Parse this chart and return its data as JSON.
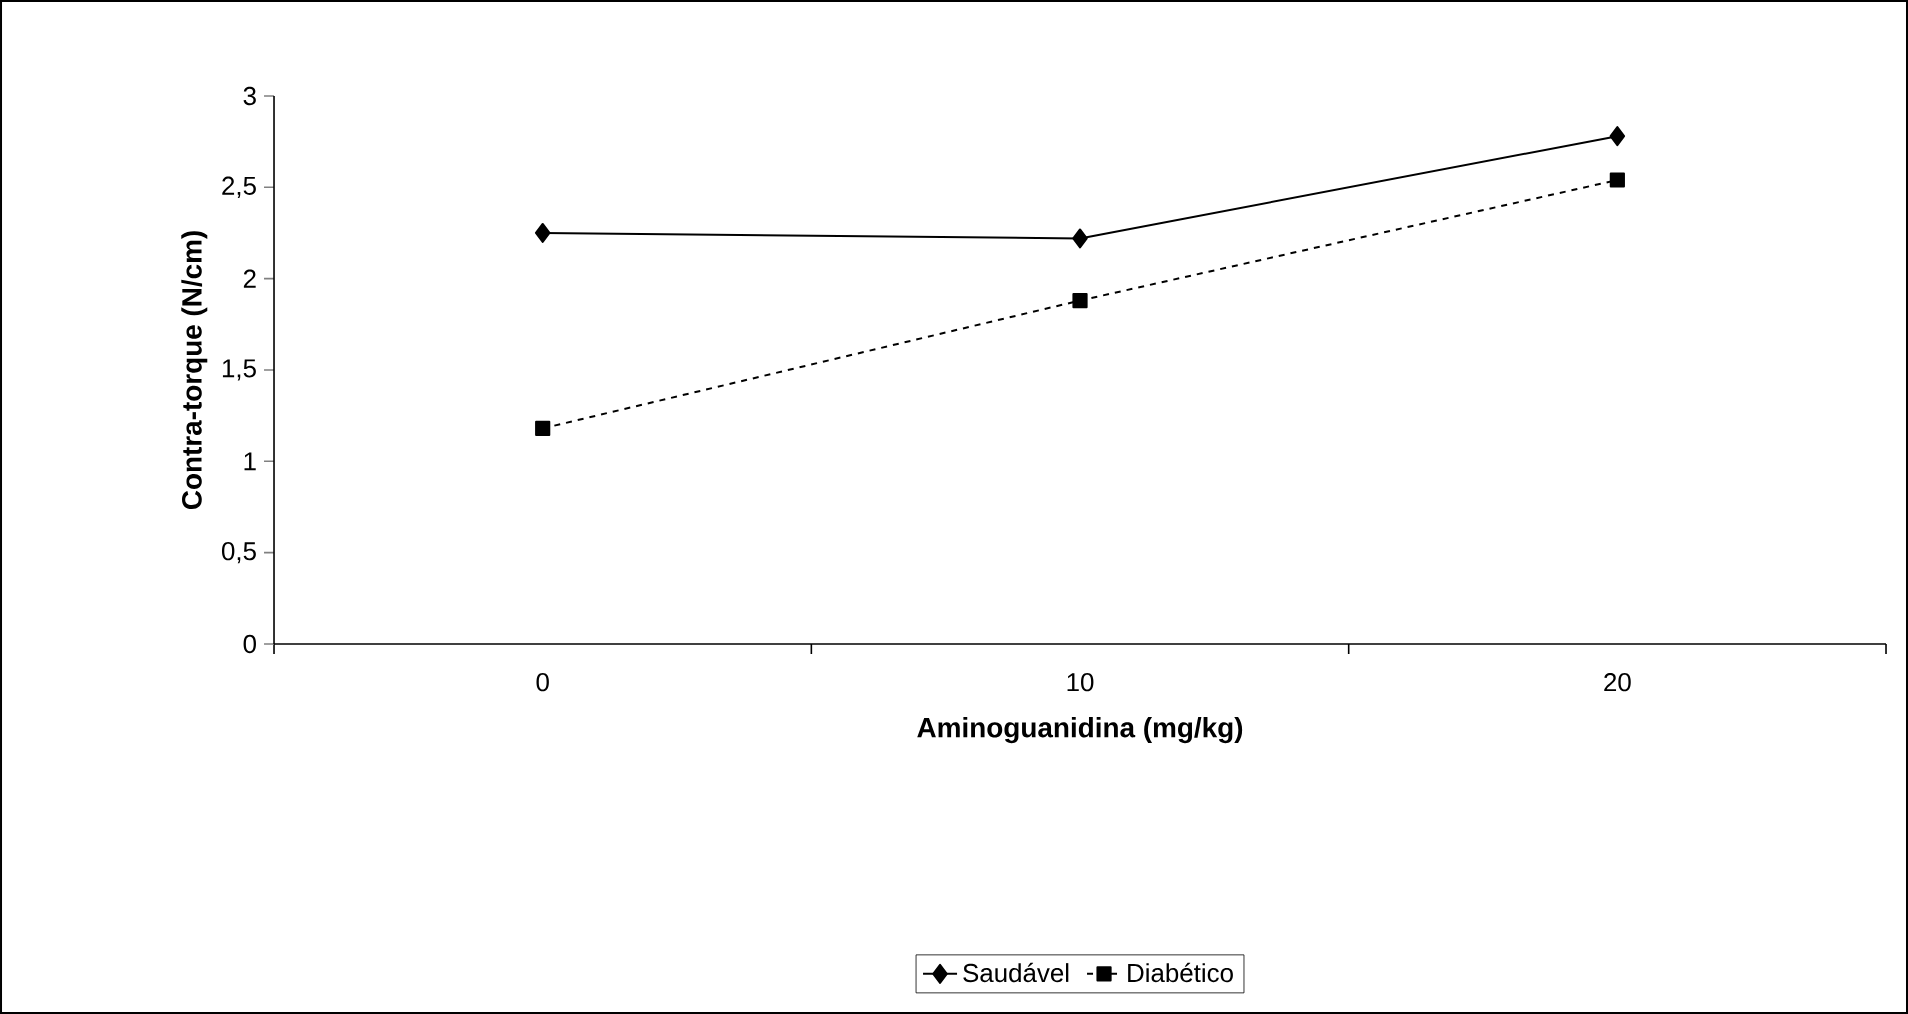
{
  "chart_data": {
    "type": "line",
    "xlabel": "Aminoguanidina (mg/kg)",
    "ylabel": "Contra-torque (N/cm)",
    "categories": [
      "0",
      "10",
      "20"
    ],
    "ylim": [
      0,
      3
    ],
    "yticks": [
      0,
      {
        "value": 0.5,
        "label": "0,5"
      },
      1,
      {
        "value": 1.5,
        "label": "1,5"
      },
      2,
      {
        "value": 2.5,
        "label": "2,5"
      },
      3
    ],
    "legend": "bottom",
    "series": [
      {
        "name": "Saudável",
        "color": "#000000",
        "marker": "diamond",
        "line_style": "solid",
        "values": [
          2.25,
          2.22,
          2.78
        ]
      },
      {
        "name": "Diabético",
        "color": "#000000",
        "marker": "square",
        "line_style": "dotted",
        "values": [
          1.18,
          1.88,
          2.54
        ]
      }
    ]
  }
}
